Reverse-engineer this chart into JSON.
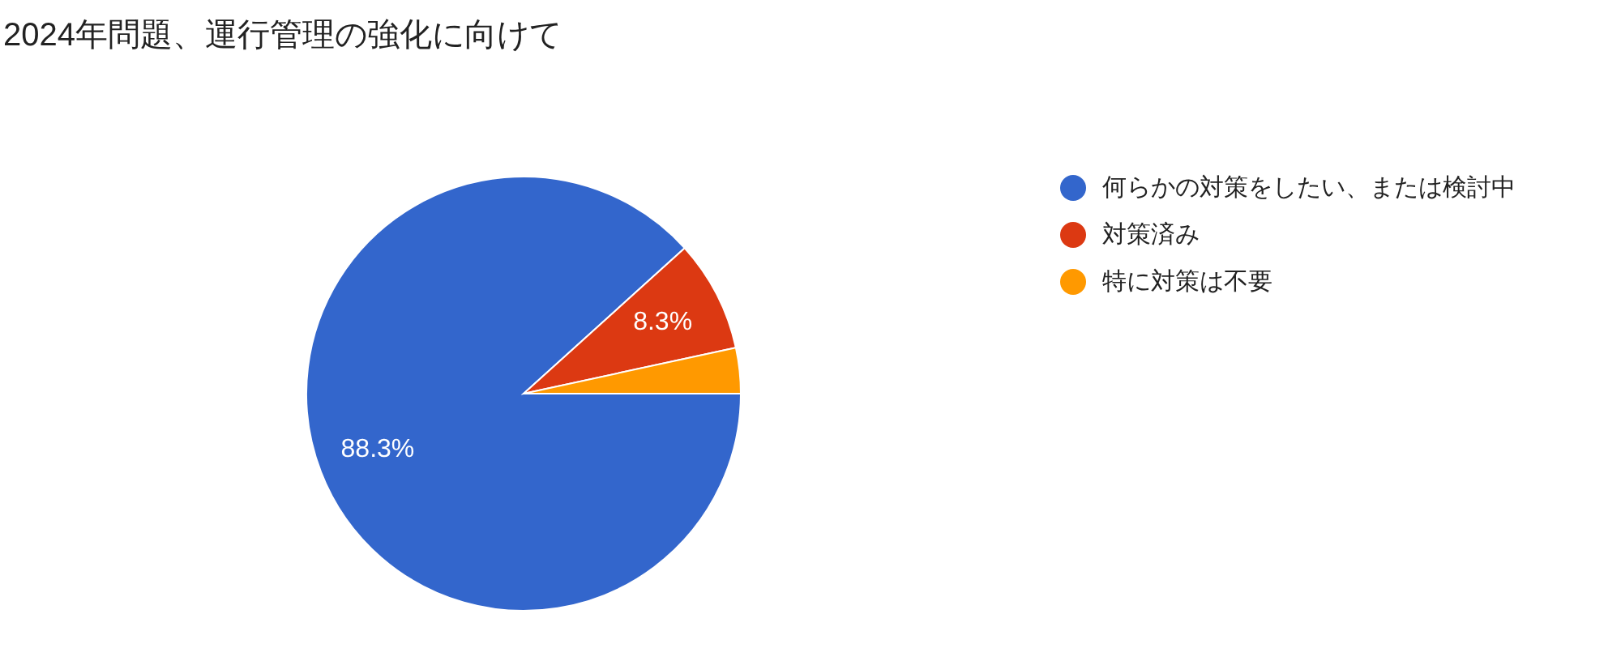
{
  "chart_data": {
    "type": "pie",
    "title": "2024年問題、運行管理の強化に向けて",
    "categories": [
      "何らかの対策をしたい、または検討中",
      "対策済み",
      "特に対策は不要"
    ],
    "values": [
      88.3,
      8.3,
      3.4
    ],
    "value_labels": [
      "88.3%",
      "8.3%",
      null
    ],
    "colors": [
      "#3366cc",
      "#dc3912",
      "#ff9900"
    ],
    "legend": "right"
  }
}
